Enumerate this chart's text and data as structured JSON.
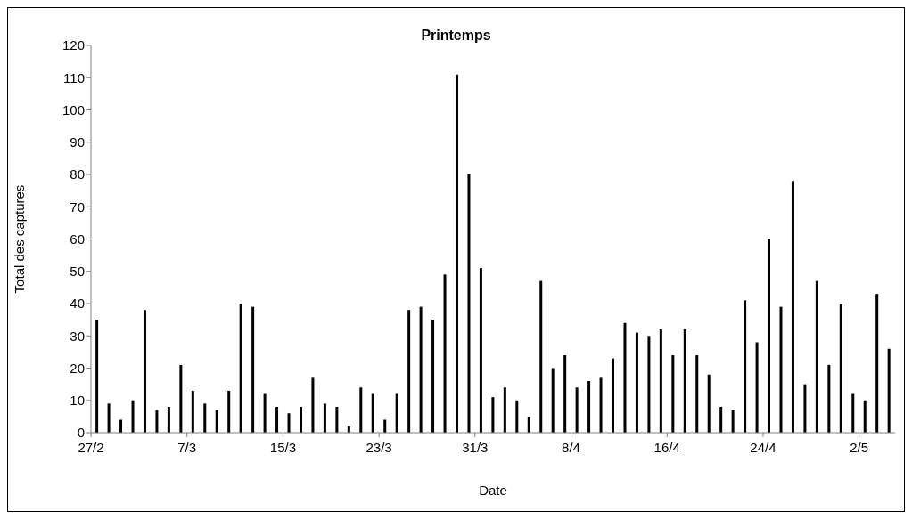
{
  "chart_data": {
    "type": "bar",
    "title": "Printemps",
    "xlabel": "Date",
    "ylabel": "Total des captures",
    "categories": [
      "27/2",
      null,
      null,
      null,
      null,
      null,
      null,
      null,
      "7/3",
      null,
      null,
      null,
      null,
      null,
      null,
      null,
      "15/3",
      null,
      null,
      null,
      null,
      null,
      null,
      null,
      "23/3",
      null,
      null,
      null,
      null,
      null,
      null,
      null,
      "31/3",
      null,
      null,
      null,
      null,
      null,
      null,
      null,
      "8/4",
      null,
      null,
      null,
      null,
      null,
      null,
      null,
      "16/4",
      null,
      null,
      null,
      null,
      null,
      null,
      null,
      "24/4",
      null,
      null,
      null,
      null,
      null,
      null,
      null,
      "2/5",
      null,
      null
    ],
    "values": [
      35,
      9,
      4,
      10,
      38,
      7,
      8,
      21,
      13,
      9,
      7,
      13,
      40,
      39,
      12,
      8,
      6,
      8,
      17,
      9,
      8,
      2,
      14,
      12,
      4,
      12,
      38,
      39,
      35,
      49,
      111,
      80,
      51,
      11,
      14,
      10,
      5,
      47,
      20,
      24,
      14,
      16,
      17,
      23,
      34,
      31,
      30,
      32,
      24,
      32,
      24,
      18,
      8,
      7,
      41,
      28,
      60,
      39,
      78,
      15,
      47,
      21,
      40,
      12,
      10,
      43,
      26
    ],
    "color": "#000000",
    "ylim": [
      0,
      120
    ],
    "yticks": [
      0,
      10,
      20,
      30,
      40,
      50,
      60,
      70,
      80,
      90,
      100,
      110,
      120
    ],
    "grid": false,
    "legend": false
  }
}
